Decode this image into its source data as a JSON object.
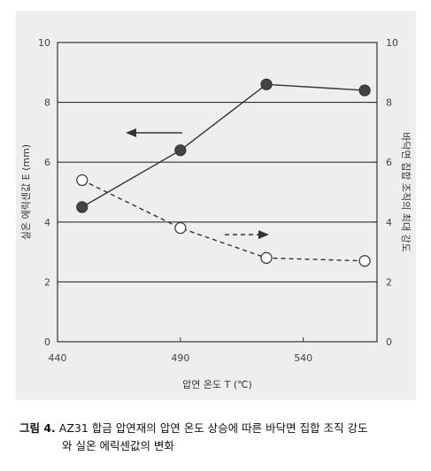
{
  "chart_data": {
    "type": "line",
    "xlabel": "압연 온도 T (℃)",
    "ylabel_left": "실온 에릭센값 E (mm)",
    "ylabel_right": "바닥면 집합 조직의 최대 강도",
    "xlim": [
      440,
      570
    ],
    "xticks": [
      "440",
      "490",
      "540"
    ],
    "ylim_left": [
      0,
      10
    ],
    "ylim_right": [
      0,
      10
    ],
    "yticks_left": [
      "0",
      "2",
      "4",
      "6",
      "8",
      "10"
    ],
    "yticks_right": [
      "0",
      "2",
      "4",
      "6",
      "8",
      "10"
    ],
    "grid": "horizontal",
    "series": [
      {
        "style": "solid line, filled circle markers",
        "axis": "left",
        "color": "#333333",
        "x": [
          450,
          490,
          525,
          565
        ],
        "y": [
          4.5,
          6.4,
          8.6,
          8.4
        ]
      },
      {
        "style": "dashed line, open circle markers",
        "axis": "right",
        "color": "#333333",
        "x": [
          450,
          490,
          525,
          565
        ],
        "y": [
          5.4,
          3.8,
          2.8,
          2.7
        ]
      }
    ]
  },
  "caption": {
    "label": "그림 4.",
    "line1": "AZ31 합금 압연재의 압연 온도 상승에 따른 바닥면 집합 조직 강도",
    "line2": "와 실온 에릭센값의 변화"
  }
}
